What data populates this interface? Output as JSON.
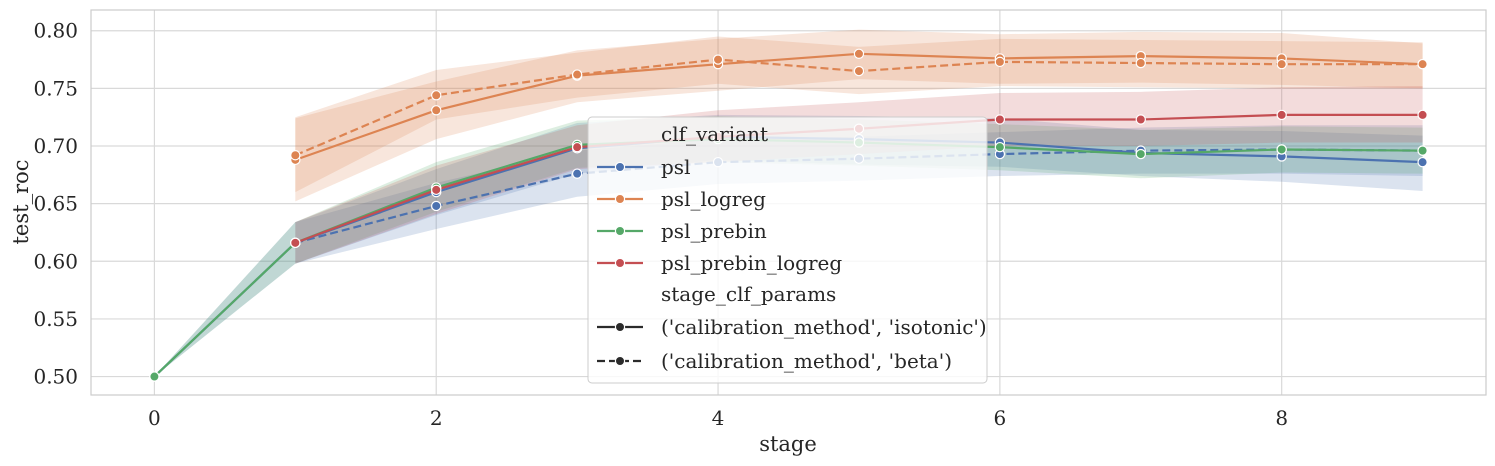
{
  "chart_data": {
    "type": "line",
    "xlabel": "stage",
    "ylabel": "test_roc",
    "xlim": [
      -0.45,
      9.45
    ],
    "ylim": [
      0.484,
      0.818
    ],
    "xticks": [
      0,
      2,
      4,
      6,
      8
    ],
    "yticks": [
      0.5,
      0.55,
      0.6,
      0.65,
      0.7,
      0.75,
      0.8
    ],
    "x_tick_labels": [
      "0",
      "2",
      "4",
      "6",
      "8"
    ],
    "y_tick_labels": [
      "0.50",
      "0.55",
      "0.60",
      "0.65",
      "0.70",
      "0.75",
      "0.80"
    ],
    "grid": true,
    "legend_position": "center",
    "colors": {
      "psl": "#4c72b0",
      "psl_logreg": "#dd8452",
      "psl_prebin": "#55a868",
      "psl_prebin_logreg": "#c44e52"
    },
    "legend": {
      "hue_title": "clf_variant",
      "hue_entries": [
        "psl",
        "psl_logreg",
        "psl_prebin",
        "psl_prebin_logreg"
      ],
      "style_title": "stage_clf_params",
      "style_entries": [
        "('calibration_method', 'isotonic')",
        "('calibration_method', 'beta')"
      ]
    },
    "series": [
      {
        "variant": "psl",
        "calibration": "isotonic",
        "x": [
          0,
          1,
          2,
          3,
          4,
          5,
          6,
          7,
          8,
          9
        ],
        "y": [
          0.5,
          0.616,
          0.66,
          0.698,
          0.708,
          0.706,
          0.703,
          0.694,
          0.691,
          0.686
        ],
        "lower": [
          0.5,
          0.598,
          0.64,
          0.676,
          0.688,
          0.684,
          0.682,
          0.674,
          0.669,
          0.661
        ],
        "upper": [
          0.5,
          0.634,
          0.68,
          0.72,
          0.727,
          0.726,
          0.724,
          0.714,
          0.713,
          0.709
        ]
      },
      {
        "variant": "psl",
        "calibration": "beta",
        "x": [
          1,
          2,
          3,
          4,
          5,
          6,
          7,
          8,
          9
        ],
        "y": [
          0.616,
          0.648,
          0.676,
          0.686,
          0.689,
          0.693,
          0.696,
          0.697,
          0.696
        ],
        "lower": [
          0.598,
          0.628,
          0.656,
          0.667,
          0.67,
          0.674,
          0.676,
          0.676,
          0.674
        ],
        "upper": [
          0.634,
          0.668,
          0.696,
          0.706,
          0.708,
          0.712,
          0.716,
          0.718,
          0.718
        ]
      },
      {
        "variant": "psl_logreg",
        "calibration": "isotonic",
        "x": [
          1,
          2,
          3,
          4,
          5,
          6,
          7,
          8,
          9
        ],
        "y": [
          0.688,
          0.731,
          0.761,
          0.771,
          0.78,
          0.776,
          0.778,
          0.776,
          0.771
        ],
        "lower": [
          0.652,
          0.706,
          0.738,
          0.748,
          0.758,
          0.754,
          0.755,
          0.753,
          0.75
        ],
        "upper": [
          0.724,
          0.756,
          0.783,
          0.793,
          0.801,
          0.797,
          0.799,
          0.798,
          0.789
        ]
      },
      {
        "variant": "psl_logreg",
        "calibration": "beta",
        "x": [
          1,
          2,
          3,
          4,
          5,
          6,
          7,
          8,
          9
        ],
        "y": [
          0.692,
          0.744,
          0.762,
          0.775,
          0.765,
          0.773,
          0.772,
          0.771,
          0.771
        ],
        "lower": [
          0.66,
          0.723,
          0.742,
          0.754,
          0.745,
          0.752,
          0.751,
          0.75,
          0.75
        ],
        "upper": [
          0.725,
          0.766,
          0.781,
          0.795,
          0.786,
          0.793,
          0.792,
          0.791,
          0.79
        ]
      },
      {
        "variant": "psl_prebin",
        "calibration": "isotonic",
        "x": [
          0,
          1,
          2,
          3,
          4,
          5,
          6,
          7,
          8,
          9
        ],
        "y": [
          0.5,
          0.616,
          0.664,
          0.701,
          0.706,
          0.703,
          0.699,
          0.693,
          0.697,
          0.696
        ],
        "lower": [
          0.5,
          0.598,
          0.643,
          0.681,
          0.686,
          0.683,
          0.679,
          0.672,
          0.677,
          0.676
        ],
        "upper": [
          0.5,
          0.634,
          0.686,
          0.722,
          0.726,
          0.723,
          0.719,
          0.714,
          0.717,
          0.716
        ]
      },
      {
        "variant": "psl_prebin_logreg",
        "calibration": "isotonic",
        "x": [
          1,
          2,
          3,
          4,
          5,
          6,
          7,
          8,
          9
        ],
        "y": [
          0.616,
          0.662,
          0.699,
          0.708,
          0.715,
          0.723,
          0.723,
          0.727,
          0.727
        ],
        "lower": [
          0.598,
          0.641,
          0.68,
          0.686,
          0.693,
          0.7,
          0.7,
          0.703,
          0.703
        ],
        "upper": [
          0.634,
          0.683,
          0.718,
          0.731,
          0.738,
          0.746,
          0.747,
          0.751,
          0.752
        ]
      }
    ]
  }
}
